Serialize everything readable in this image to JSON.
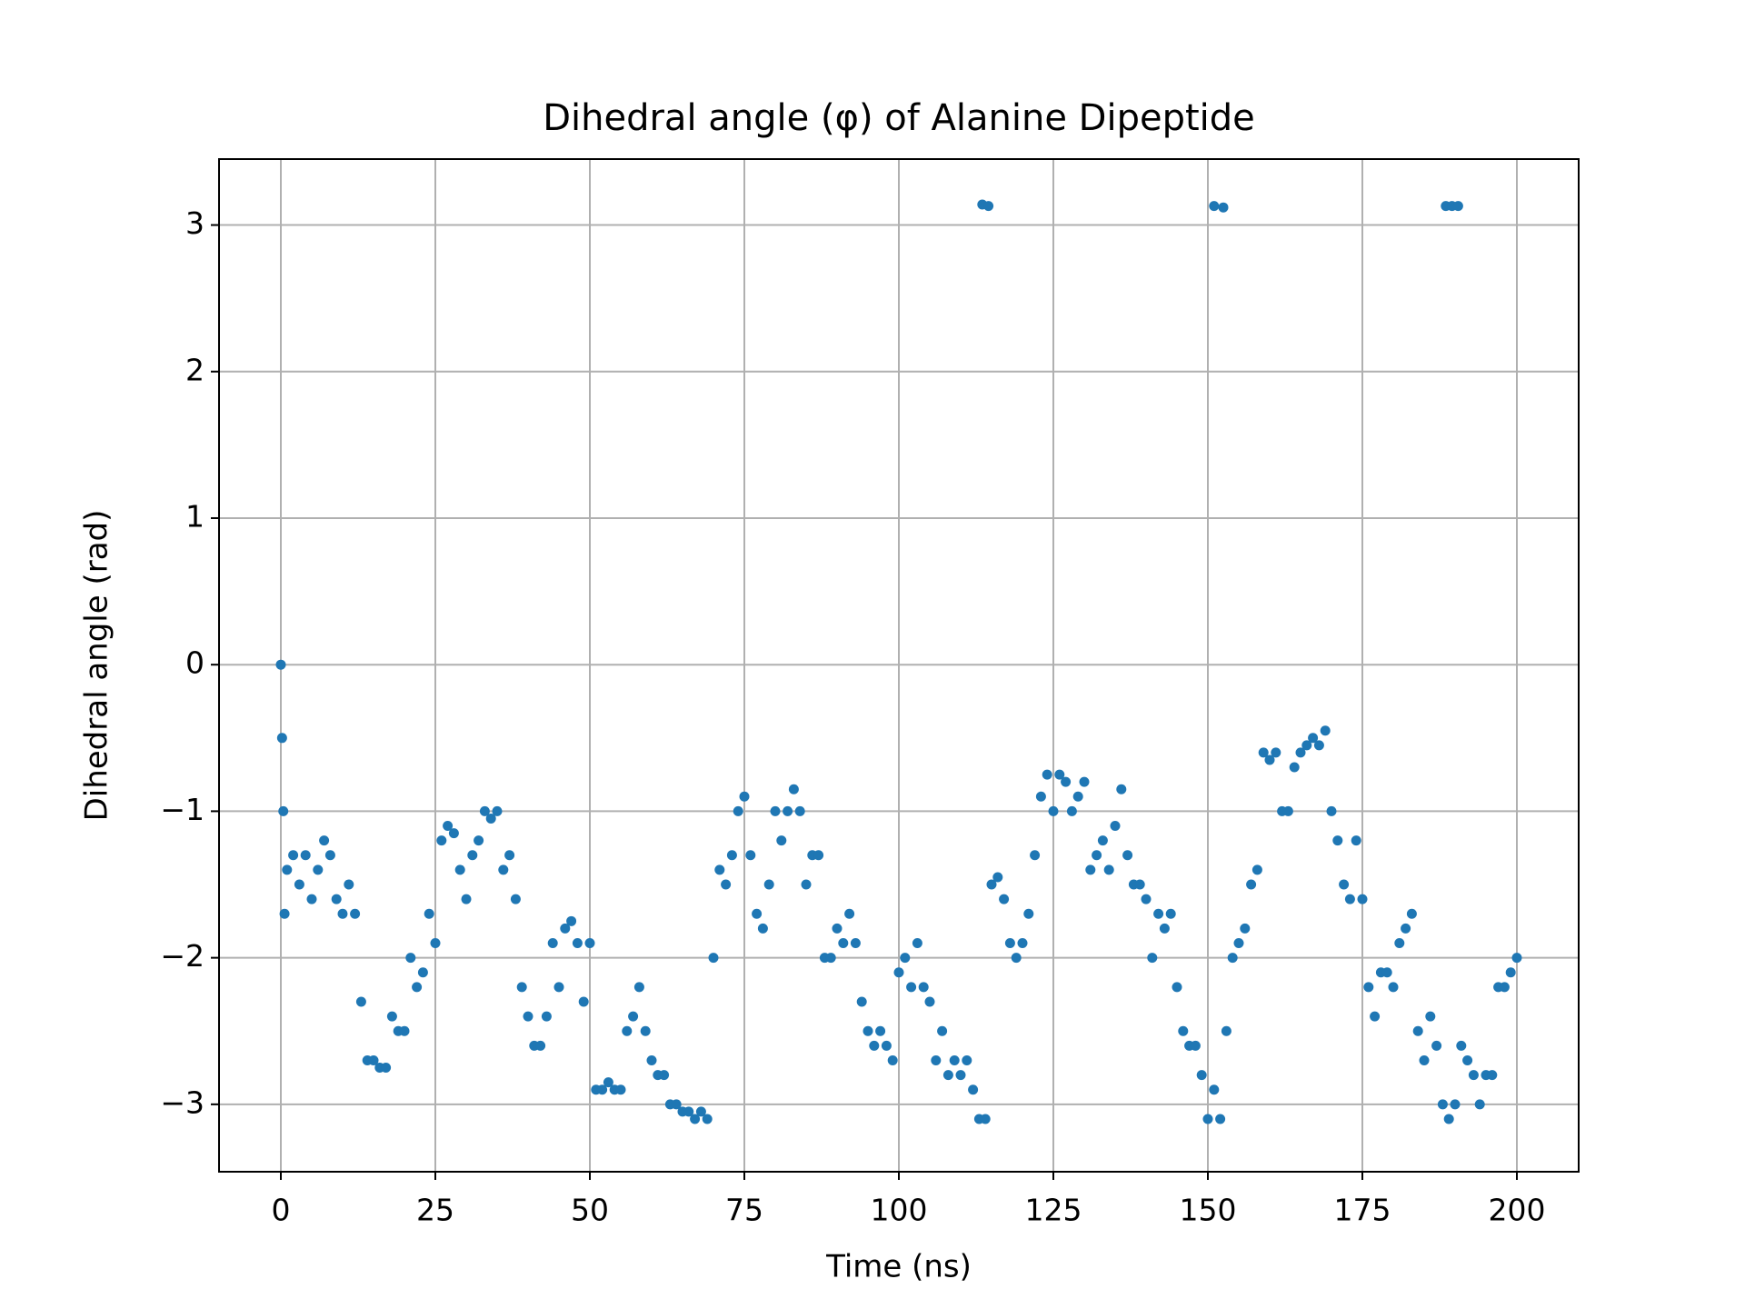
{
  "chart_data": {
    "type": "scatter",
    "title": "Dihedral angle (φ) of Alanine Dipeptide",
    "x_label": "Time (ns)",
    "y_label": "Dihedral angle (rad)",
    "color": "#1f77b4",
    "grid": true,
    "xlim": [
      -10,
      210
    ],
    "ylim": [
      -3.46,
      3.45
    ],
    "xticks": [
      0,
      25,
      50,
      75,
      100,
      125,
      150,
      175,
      200
    ],
    "yticks": [
      {
        "value": -3,
        "label": "−3"
      },
      {
        "value": -2,
        "label": "−2"
      },
      {
        "value": -1,
        "label": "−1"
      },
      0,
      1,
      2,
      3
    ],
    "x": [
      0,
      0.2,
      0.4,
      0.6,
      1,
      2,
      3,
      4,
      5,
      6,
      7,
      8,
      9,
      10,
      11,
      12,
      13,
      14,
      15,
      16,
      17,
      18,
      19,
      20,
      21,
      22,
      23,
      24,
      25,
      26,
      27,
      28,
      29,
      30,
      31,
      32,
      33,
      34,
      35,
      36,
      37,
      38,
      39,
      40,
      41,
      42,
      43,
      44,
      45,
      46,
      47,
      48,
      49,
      50,
      51,
      52,
      53,
      54,
      55,
      56,
      57,
      58,
      59,
      60,
      61,
      62,
      63,
      64,
      65,
      66,
      67,
      68,
      69,
      70,
      71,
      72,
      73,
      74,
      75,
      76,
      77,
      78,
      79,
      80,
      81,
      82,
      83,
      84,
      85,
      86,
      87,
      88,
      89,
      90,
      91,
      92,
      93,
      94,
      95,
      96,
      97,
      98,
      99,
      100,
      101,
      102,
      103,
      104,
      105,
      106,
      107,
      108,
      109,
      110,
      111,
      112,
      113,
      114,
      115,
      116,
      117,
      118,
      119,
      120,
      121,
      122,
      123,
      124,
      125,
      126,
      127,
      128,
      129,
      130,
      131,
      132,
      133,
      134,
      135,
      136,
      137,
      138,
      139,
      140,
      141,
      142,
      143,
      144,
      145,
      146,
      147,
      148,
      149,
      150,
      151,
      152,
      153,
      154,
      155,
      156,
      157,
      158,
      159,
      160,
      161,
      162,
      163,
      164,
      165,
      166,
      167,
      168,
      169,
      170,
      171,
      172,
      173,
      174,
      175,
      176,
      177,
      178,
      179,
      180,
      181,
      182,
      183,
      184,
      185,
      186,
      187,
      188,
      189,
      190,
      191,
      192,
      193,
      194,
      195,
      196,
      197,
      198,
      199,
      200,
      113.5,
      114.5,
      151,
      152.5,
      188.5,
      189.5,
      190.5
    ],
    "values": [
      0,
      -0.5,
      -1.0,
      -1.7,
      -1.4,
      -1.3,
      -1.5,
      -1.3,
      -1.6,
      -1.4,
      -1.2,
      -1.3,
      -1.6,
      -1.7,
      -1.5,
      -1.7,
      -2.3,
      -2.7,
      -2.7,
      -2.75,
      -2.75,
      -2.4,
      -2.5,
      -2.5,
      -2.0,
      -2.2,
      -2.1,
      -1.7,
      -1.9,
      -1.2,
      -1.1,
      -1.15,
      -1.4,
      -1.6,
      -1.3,
      -1.2,
      -1.0,
      -1.05,
      -1.0,
      -1.4,
      -1.3,
      -1.6,
      -2.2,
      -2.4,
      -2.6,
      -2.6,
      -2.4,
      -1.9,
      -2.2,
      -1.8,
      -1.75,
      -1.9,
      -2.3,
      -1.9,
      -2.9,
      -2.9,
      -2.85,
      -2.9,
      -2.9,
      -2.5,
      -2.4,
      -2.2,
      -2.5,
      -2.7,
      -2.8,
      -2.8,
      -3.0,
      -3.0,
      -3.05,
      -3.05,
      -3.1,
      -3.05,
      -3.1,
      -2.0,
      -1.4,
      -1.5,
      -1.3,
      -1.0,
      -0.9,
      -1.3,
      -1.7,
      -1.8,
      -1.5,
      -1.0,
      -1.2,
      -1.0,
      -0.85,
      -1.0,
      -1.5,
      -1.3,
      -1.3,
      -2.0,
      -2.0,
      -1.8,
      -1.9,
      -1.7,
      -1.9,
      -2.3,
      -2.5,
      -2.6,
      -2.5,
      -2.6,
      -2.7,
      -2.1,
      -2.0,
      -2.2,
      -1.9,
      -2.2,
      -2.3,
      -2.7,
      -2.5,
      -2.8,
      -2.7,
      -2.8,
      -2.7,
      -2.9,
      -3.1,
      -3.1,
      -1.5,
      -1.45,
      -1.6,
      -1.9,
      -2.0,
      -1.9,
      -1.7,
      -1.3,
      -0.9,
      -0.75,
      -1.0,
      -0.75,
      -0.8,
      -1.0,
      -0.9,
      -0.8,
      -1.4,
      -1.3,
      -1.2,
      -1.4,
      -1.1,
      -0.85,
      -1.3,
      -1.5,
      -1.5,
      -1.6,
      -2.0,
      -1.7,
      -1.8,
      -1.7,
      -2.2,
      -2.5,
      -2.6,
      -2.6,
      -2.8,
      -3.1,
      -2.9,
      -3.1,
      -2.5,
      -2.0,
      -1.9,
      -1.8,
      -1.5,
      -1.4,
      -0.6,
      -0.65,
      -0.6,
      -1.0,
      -1.0,
      -0.7,
      -0.6,
      -0.55,
      -0.5,
      -0.55,
      -0.45,
      -1.0,
      -1.2,
      -1.5,
      -1.6,
      -1.2,
      -1.6,
      -2.2,
      -2.4,
      -2.1,
      -2.1,
      -2.2,
      -1.9,
      -1.8,
      -1.7,
      -2.5,
      -2.7,
      -2.4,
      -2.6,
      -3.0,
      -3.1,
      -3.0,
      -2.6,
      -2.7,
      -2.8,
      -3.0,
      -2.8,
      -2.8,
      -2.2,
      -2.2,
      -2.1,
      -2.0,
      3.14,
      3.13,
      3.13,
      3.12,
      3.13,
      3.13,
      3.13
    ]
  }
}
